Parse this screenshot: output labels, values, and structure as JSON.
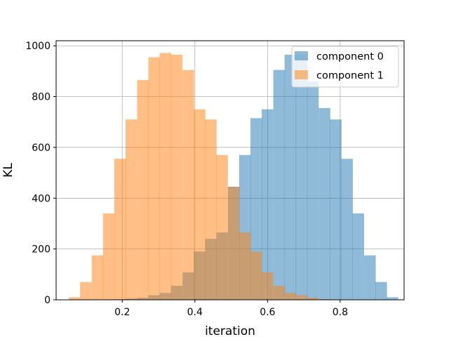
{
  "chart_data": {
    "type": "bar",
    "xlabel": "iteration",
    "ylabel": "KL",
    "xlim": [
      0.018,
      0.976
    ],
    "ylim": [
      0,
      1020
    ],
    "xticks": [
      "0.2",
      "0.4",
      "0.6",
      "0.8"
    ],
    "xtick_values": [
      0.2,
      0.4,
      0.6,
      0.8
    ],
    "yticks": [
      "0",
      "200",
      "400",
      "600",
      "800",
      "1000"
    ],
    "ytick_values": [
      0,
      200,
      400,
      600,
      800,
      1000
    ],
    "grid": true,
    "legend_position": "top-right",
    "bin_width": 0.0313,
    "series": [
      {
        "name": "component 0",
        "color": "#1f77b4",
        "alpha": 0.5,
        "bin_starts": [
          0.178,
          0.209,
          0.241,
          0.272,
          0.303,
          0.334,
          0.366,
          0.397,
          0.428,
          0.459,
          0.491,
          0.522,
          0.553,
          0.584,
          0.616,
          0.647,
          0.678,
          0.709,
          0.741,
          0.772,
          0.803,
          0.834,
          0.866,
          0.897,
          0.928
        ],
        "values": [
          2,
          5,
          8,
          18,
          27,
          55,
          108,
          190,
          240,
          265,
          445,
          570,
          715,
          750,
          905,
          965,
          965,
          860,
          755,
          710,
          555,
          340,
          175,
          70,
          10
        ]
      },
      {
        "name": "component 1",
        "color": "#ff7f0e",
        "alpha": 0.5,
        "bin_starts": [
          0.053,
          0.084,
          0.116,
          0.147,
          0.178,
          0.209,
          0.241,
          0.272,
          0.303,
          0.334,
          0.366,
          0.397,
          0.428,
          0.459,
          0.491,
          0.522,
          0.553,
          0.584,
          0.616,
          0.647,
          0.678,
          0.709,
          0.741
        ],
        "values": [
          10,
          70,
          175,
          340,
          555,
          710,
          865,
          955,
          972,
          965,
          905,
          750,
          710,
          570,
          445,
          265,
          190,
          108,
          55,
          27,
          18,
          8,
          3
        ]
      }
    ]
  }
}
